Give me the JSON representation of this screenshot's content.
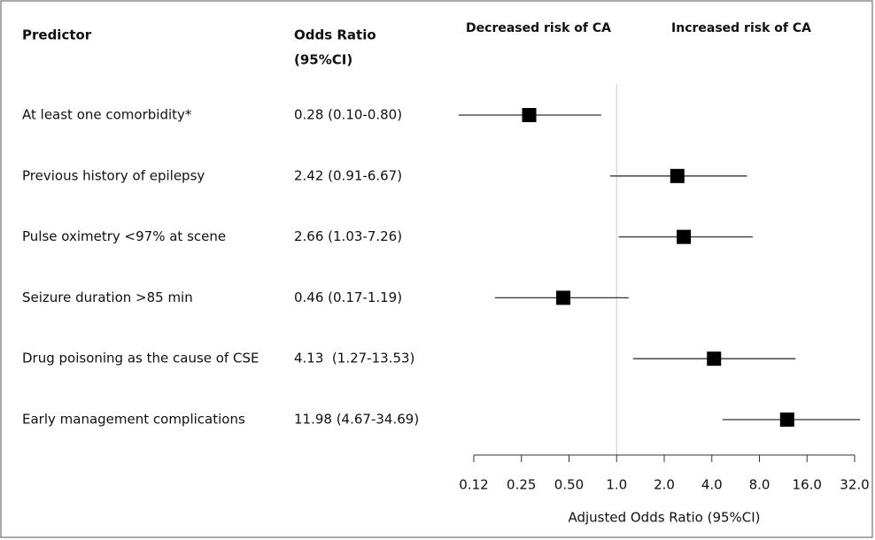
{
  "chart_data": {
    "type": "forest",
    "headers": {
      "predictor": "Predictor",
      "odds_ratio": "Odds Ratio",
      "ci": "(95%CI)"
    },
    "annotations": [
      "Decreased risk of CA",
      "Increased risk of CA"
    ],
    "xlabel": "Adjusted Odds Ratio (95%CI)",
    "categories": [
      "At least one comorbidity*",
      "Previous history of epilepsy",
      "Pulse oximetry <97% at scene",
      "Seizure duration >85 min",
      "Drug poisoning as the cause of CSE",
      "Early management complications"
    ],
    "values": [
      0.28,
      2.42,
      2.66,
      0.46,
      4.13,
      11.98
    ],
    "lower": [
      0.1,
      0.91,
      1.03,
      0.17,
      1.27,
      4.67
    ],
    "upper": [
      0.8,
      6.67,
      7.26,
      1.19,
      13.53,
      34.69
    ],
    "value_labels": [
      "0.28 (0.10-0.80)",
      "2.42 (0.91-6.67)",
      "2.66 (1.03-7.26)",
      "0.46 (0.17-1.19)",
      "4.13  (1.27-13.53)",
      "11.98 (4.67-34.69)"
    ],
    "xscale": "log",
    "xlim": [
      0.125,
      32
    ],
    "xticks": [
      {
        "value": 0.125,
        "label": "0.12"
      },
      0.25,
      {
        "value": 0.5,
        "label": "0.50"
      },
      {
        "value": 1,
        "label": "1.0"
      },
      {
        "value": 2,
        "label": "2.0"
      },
      {
        "value": 4,
        "label": "4.0"
      },
      {
        "value": 8,
        "label": "8.0"
      },
      {
        "value": 16,
        "label": "16.0"
      },
      {
        "value": 32,
        "label": "32.0"
      }
    ],
    "reference_line": 1,
    "color": "#000000"
  }
}
